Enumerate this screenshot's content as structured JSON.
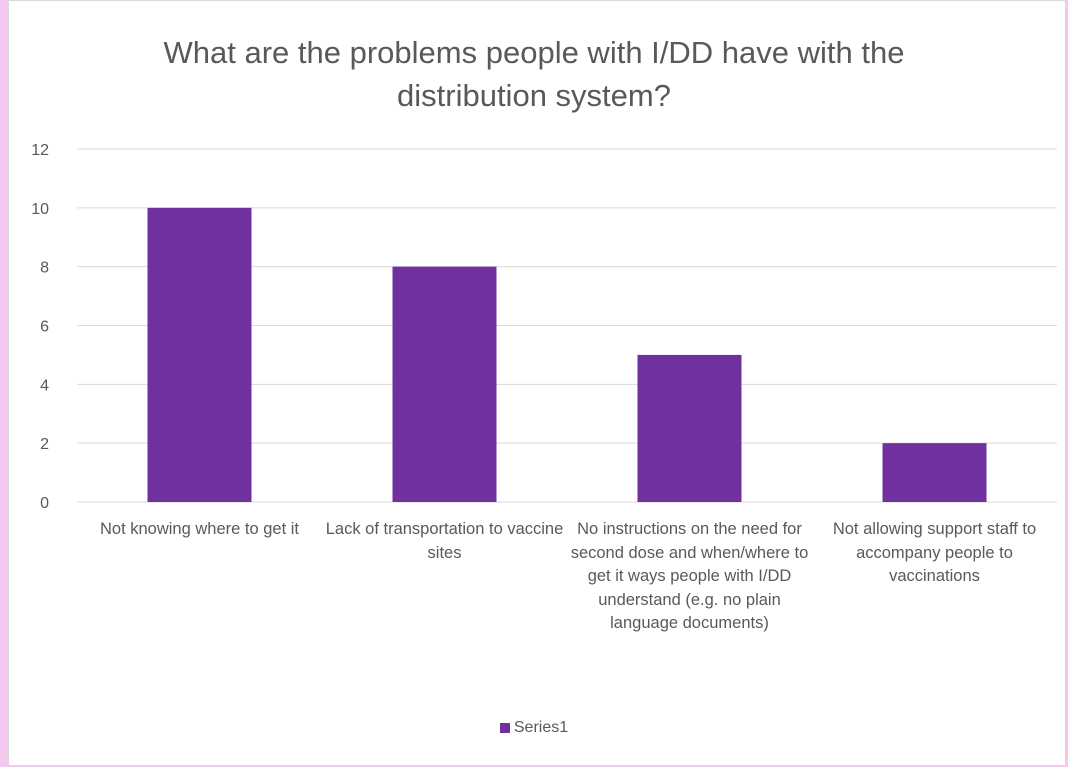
{
  "chart_data": {
    "type": "bar",
    "title": "What are the problems people with I/DD have with the distribution system?",
    "categories": [
      "Not knowing where to get it",
      "Lack of transportation to vaccine sites",
      "No instructions on the need for second dose and when/where to get it ways people with I/DD understand (e.g. no plain language documents)",
      "Not allowing support staff to accompany people to vaccinations"
    ],
    "series": [
      {
        "name": "Series1",
        "values": [
          10,
          8,
          5,
          2
        ],
        "color": "#7030a0"
      }
    ],
    "ylim": [
      0,
      12
    ],
    "yticks": [
      0,
      2,
      4,
      6,
      8,
      10,
      12
    ],
    "grid": true,
    "legend": "bottom",
    "xlabel": "",
    "ylabel": ""
  }
}
